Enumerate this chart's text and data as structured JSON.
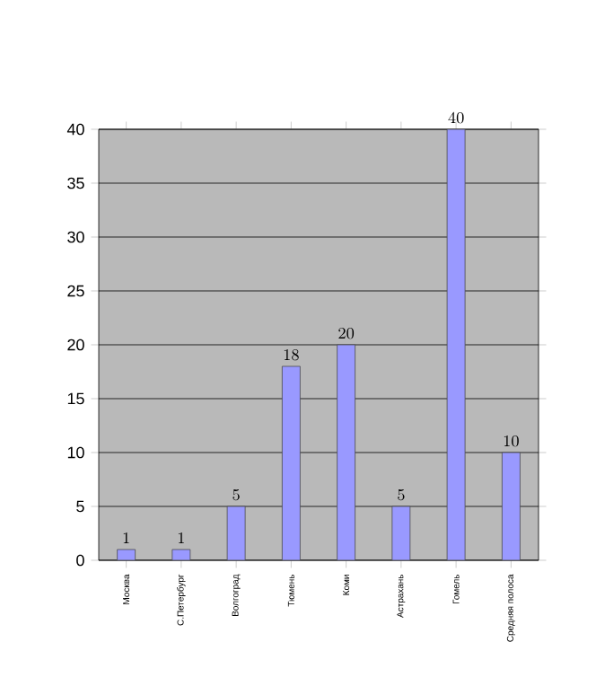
{
  "chart_data": {
    "type": "bar",
    "categories": [
      "Москва",
      "С.Петербург",
      "Волгоград",
      "Тюмень",
      "Коми",
      "Астрахань",
      "Гомель",
      "Средняя полоса"
    ],
    "values": [
      1,
      1,
      5,
      18,
      20,
      5,
      40,
      10
    ],
    "color": "#9999ff",
    "ylim": [
      0,
      40
    ],
    "yticks": [
      0,
      5,
      10,
      15,
      20,
      25,
      30,
      35,
      40
    ],
    "grid": "y",
    "data_labels": true
  }
}
